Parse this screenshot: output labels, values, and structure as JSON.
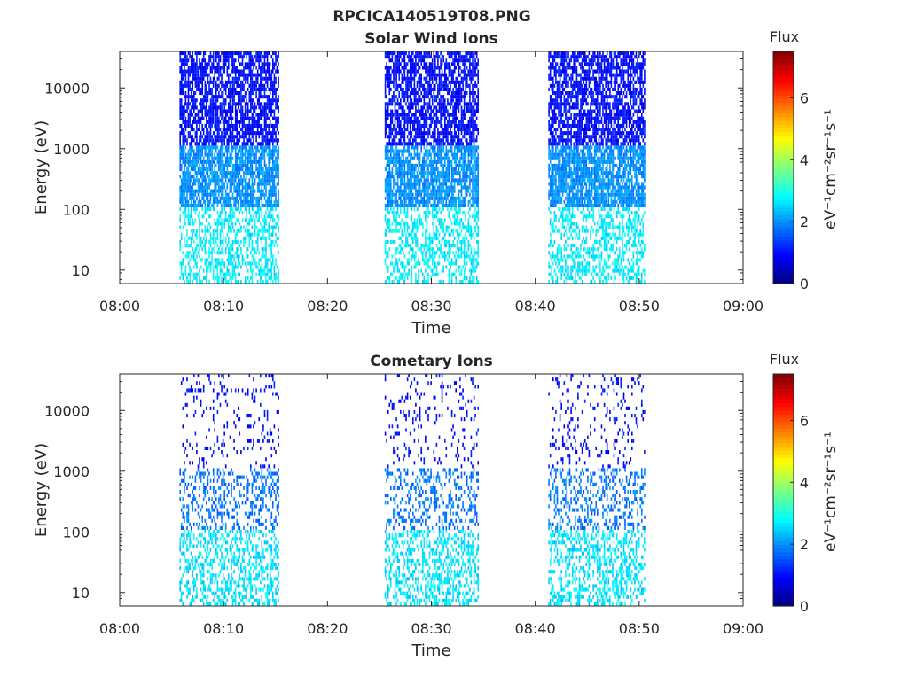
{
  "figure_title": "RPCICA140519T08.PNG",
  "chart_data": [
    {
      "type": "heatmap",
      "title": "Solar Wind Ions",
      "xlabel": "Time",
      "ylabel": "Energy (eV)",
      "x_ticks": [
        "08:00",
        "08:10",
        "08:20",
        "08:30",
        "08:40",
        "08:50",
        "09:00"
      ],
      "xlim": [
        "08:00",
        "09:00"
      ],
      "y_scale": "log",
      "y_ticks": [
        10,
        100,
        1000,
        10000
      ],
      "y_tick_labels": [
        "10",
        "100",
        "1000",
        "10000"
      ],
      "ylim": [
        6,
        40000
      ],
      "colorbar": {
        "title": "Flux",
        "label": "eV⁻¹cm⁻²sr⁻¹s⁻¹",
        "ticks": [
          "0",
          "2",
          "4",
          "6"
        ],
        "range": [
          0,
          7.5
        ],
        "colormap": "jet"
      },
      "active_intervals": [
        {
          "start": "08:05:45",
          "end": "08:15:20"
        },
        {
          "start": "08:25:30",
          "end": "08:34:30"
        },
        {
          "start": "08:41:15",
          "end": "08:50:30"
        }
      ],
      "typical_flux": {
        "above_1000_eV": 1.0,
        "100_to_1000_eV": 2.0,
        "below_100_eV": 2.7
      },
      "point_density": {
        "above_1000_eV": 0.7,
        "100_to_1000_eV": 0.8,
        "below_100_eV": 0.45
      }
    },
    {
      "type": "heatmap",
      "title": "Cometary Ions",
      "xlabel": "Time",
      "ylabel": "Energy (eV)",
      "x_ticks": [
        "08:00",
        "08:10",
        "08:20",
        "08:30",
        "08:40",
        "08:50",
        "09:00"
      ],
      "xlim": [
        "08:00",
        "09:00"
      ],
      "y_scale": "log",
      "y_ticks": [
        10,
        100,
        1000,
        10000
      ],
      "y_tick_labels": [
        "10",
        "100",
        "1000",
        "10000"
      ],
      "ylim": [
        6,
        40000
      ],
      "colorbar": {
        "title": "Flux",
        "label": "eV⁻¹cm⁻²sr⁻¹s⁻¹",
        "ticks": [
          "0",
          "2",
          "4",
          "6"
        ],
        "range": [
          0,
          7.5
        ],
        "colormap": "jet"
      },
      "active_intervals": [
        {
          "start": "08:05:45",
          "end": "08:15:20"
        },
        {
          "start": "08:25:30",
          "end": "08:34:30"
        },
        {
          "start": "08:41:15",
          "end": "08:50:30"
        }
      ],
      "typical_flux": {
        "above_1000_eV": 1.0,
        "100_to_1000_eV": 1.8,
        "below_100_eV": 2.6
      },
      "point_density": {
        "above_1000_eV": 0.12,
        "100_to_1000_eV": 0.3,
        "below_100_eV": 0.4
      }
    }
  ]
}
